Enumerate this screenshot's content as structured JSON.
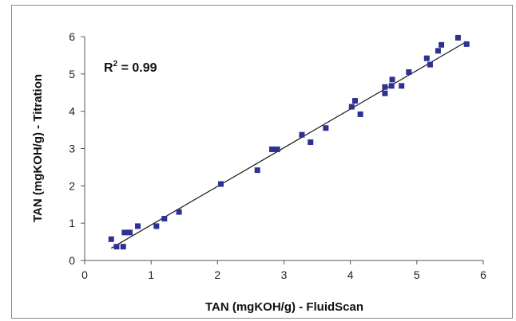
{
  "chart_data": {
    "type": "scatter",
    "xlabel": "TAN (mgKOH/g) - FluidScan",
    "ylabel": "TAN (mgKOH/g) - Titration",
    "xlim": [
      0,
      6
    ],
    "ylim": [
      0,
      6
    ],
    "x_ticks": [
      "0",
      "1",
      "2",
      "3",
      "4",
      "5",
      "6"
    ],
    "y_ticks": [
      "0",
      "1",
      "2",
      "3",
      "4",
      "5",
      "6"
    ],
    "grid": false,
    "annotation": {
      "prefix": "R",
      "sup": "2",
      "suffix": " = 0.99"
    },
    "marker_color": "#2E3192",
    "trendline": {
      "x": [
        0.4,
        5.75
      ],
      "y": [
        0.33,
        5.87
      ],
      "color": "#1a1a1a"
    },
    "points": [
      {
        "x": 0.4,
        "y": 0.57
      },
      {
        "x": 0.48,
        "y": 0.37
      },
      {
        "x": 0.58,
        "y": 0.37
      },
      {
        "x": 0.6,
        "y": 0.75
      },
      {
        "x": 0.68,
        "y": 0.75
      },
      {
        "x": 0.8,
        "y": 0.92
      },
      {
        "x": 1.08,
        "y": 0.92
      },
      {
        "x": 1.2,
        "y": 1.12
      },
      {
        "x": 1.42,
        "y": 1.3
      },
      {
        "x": 2.05,
        "y": 2.05
      },
      {
        "x": 2.6,
        "y": 2.42
      },
      {
        "x": 2.82,
        "y": 2.98
      },
      {
        "x": 2.9,
        "y": 2.98
      },
      {
        "x": 3.27,
        "y": 3.37
      },
      {
        "x": 3.4,
        "y": 3.17
      },
      {
        "x": 3.63,
        "y": 3.55
      },
      {
        "x": 4.02,
        "y": 4.12
      },
      {
        "x": 4.07,
        "y": 4.28
      },
      {
        "x": 4.15,
        "y": 3.92
      },
      {
        "x": 4.52,
        "y": 4.48
      },
      {
        "x": 4.52,
        "y": 4.65
      },
      {
        "x": 4.62,
        "y": 4.68
      },
      {
        "x": 4.63,
        "y": 4.85
      },
      {
        "x": 4.77,
        "y": 4.68
      },
      {
        "x": 4.88,
        "y": 5.05
      },
      {
        "x": 5.15,
        "y": 5.42
      },
      {
        "x": 5.2,
        "y": 5.25
      },
      {
        "x": 5.32,
        "y": 5.62
      },
      {
        "x": 5.37,
        "y": 5.78
      },
      {
        "x": 5.62,
        "y": 5.97
      },
      {
        "x": 5.75,
        "y": 5.8
      }
    ]
  }
}
